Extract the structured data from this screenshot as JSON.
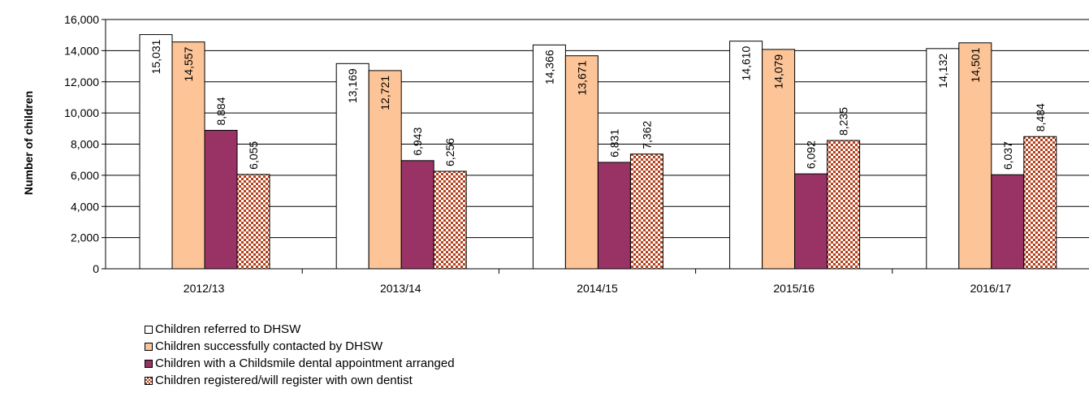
{
  "chart_data": {
    "type": "bar",
    "ylabel": "Number of children",
    "ylim": [
      0,
      16000
    ],
    "yticks": [
      "0",
      "2,000",
      "4,000",
      "6,000",
      "8,000",
      "10,000",
      "12,000",
      "14,000",
      "16,000"
    ],
    "ytick_values": [
      0,
      2000,
      4000,
      6000,
      8000,
      10000,
      12000,
      14000,
      16000
    ],
    "grid": true,
    "legend_position": "bottom-left",
    "categories": [
      "2012/13",
      "2013/14",
      "2014/15",
      "2015/16",
      "2016/17"
    ],
    "series": [
      {
        "name": "Children referred to DHSW",
        "values": [
          15031,
          13169,
          14366,
          14610,
          14132
        ],
        "labels": [
          "15,031",
          "13,169",
          "14,366",
          "14,610",
          "14,132"
        ],
        "color": "#ffffff",
        "pattern": "none"
      },
      {
        "name": "Children successfully contacted by DHSW",
        "values": [
          14557,
          12721,
          13671,
          14079,
          14501
        ],
        "labels": [
          "14,557",
          "12,721",
          "13,671",
          "14,079",
          "14,501"
        ],
        "color": "#fcc497",
        "pattern": "none"
      },
      {
        "name": "Children with a Childsmile dental appointment arranged",
        "values": [
          8884,
          6943,
          6831,
          6092,
          6037
        ],
        "labels": [
          "8,884",
          "6,943",
          "6,831",
          "6,092",
          "6,037"
        ],
        "color": "#993366",
        "pattern": "none"
      },
      {
        "name": "Children registered/will register with own dentist",
        "values": [
          6055,
          6256,
          7362,
          8235,
          8484
        ],
        "labels": [
          "6,055",
          "6,256",
          "7,362",
          "8,235",
          "8,484"
        ],
        "color": "#b5411c",
        "pattern": "dots"
      }
    ]
  }
}
